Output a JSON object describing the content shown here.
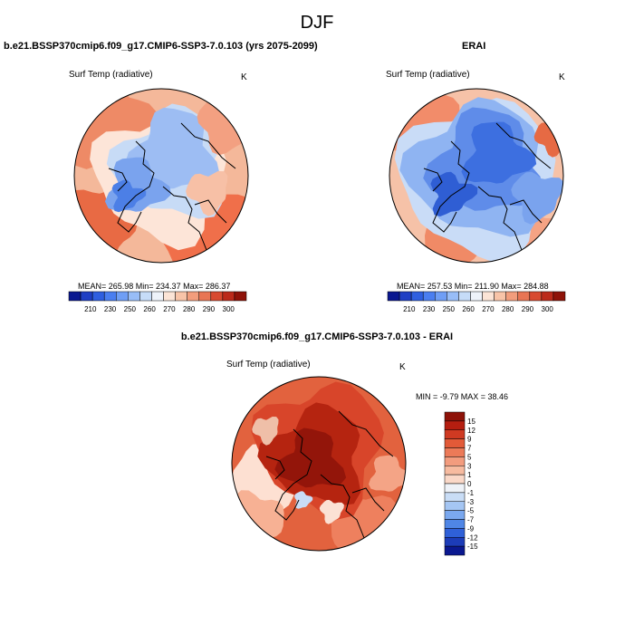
{
  "figure": {
    "title": "DJF"
  },
  "panels": [
    {
      "id": "model",
      "title": "b.e21.BSSP370cmip6.f09_g17.CMIP6-SSP3-7.0.103 (yrs 2075-2099)",
      "variable": "Surf Temp (radiative)",
      "units": "K",
      "stats": "MEAN= 265.98  Min= 234.37  Max= 286.37"
    },
    {
      "id": "obs",
      "title": "ERAI",
      "variable": "Surf Temp (radiative)",
      "units": "K",
      "stats": "MEAN= 257.53  Min= 211.90  Max= 284.88"
    },
    {
      "id": "diff",
      "title": "b.e21.BSSP370cmip6.f09_g17.CMIP6-SSP3-7.0.103 - ERAI",
      "variable": "Surf Temp (radiative)",
      "units": "K",
      "stats": "MIN =  -9.79 MAX =  38.46"
    }
  ],
  "chart_data": [
    {
      "type": "heatmap",
      "projection": "north polar stereographic",
      "title": "b.e21.BSSP370cmip6.f09_g17.CMIP6-SSP3-7.0.103 (yrs 2075-2099)",
      "variable": "Surf Temp (radiative)",
      "units": "K",
      "mean": 265.98,
      "min": 234.37,
      "max": 286.37,
      "colorbar": {
        "orientation": "horizontal",
        "ticks": [
          210,
          230,
          250,
          260,
          270,
          280,
          290,
          300
        ],
        "colors": [
          "#0a1890",
          "#1f3fc4",
          "#2f5fe0",
          "#4a7ef0",
          "#6f9ef5",
          "#98bdf7",
          "#c6dcf8",
          "#eef3fa",
          "#fbe4d6",
          "#f8c4a8",
          "#f29d7c",
          "#e87554",
          "#d84a30",
          "#bb2a1a",
          "#8e1208"
        ]
      }
    },
    {
      "type": "heatmap",
      "projection": "north polar stereographic",
      "title": "ERAI",
      "variable": "Surf Temp (radiative)",
      "units": "K",
      "mean": 257.53,
      "min": 211.9,
      "max": 284.88,
      "colorbar": {
        "orientation": "horizontal",
        "ticks": [
          210,
          230,
          250,
          260,
          270,
          280,
          290,
          300
        ],
        "colors": [
          "#0a1890",
          "#1f3fc4",
          "#2f5fe0",
          "#4a7ef0",
          "#6f9ef5",
          "#98bdf7",
          "#c6dcf8",
          "#eef3fa",
          "#fbe4d6",
          "#f8c4a8",
          "#f29d7c",
          "#e87554",
          "#d84a30",
          "#bb2a1a",
          "#8e1208"
        ]
      }
    },
    {
      "type": "heatmap",
      "projection": "north polar stereographic",
      "title": "b.e21.BSSP370cmip6.f09_g17.CMIP6-SSP3-7.0.103 - ERAI",
      "variable": "Surf Temp (radiative)",
      "units": "K",
      "min": -9.79,
      "max": 38.46,
      "colorbar": {
        "orientation": "vertical",
        "ticks": [
          15,
          12,
          9,
          7,
          5,
          3,
          1,
          0,
          -1,
          -3,
          -5,
          -7,
          -9,
          -12,
          -15
        ],
        "colors": [
          "#8e1208",
          "#b51e10",
          "#cf3a22",
          "#e25a38",
          "#ec7a58",
          "#f39c7e",
          "#f7bba0",
          "#fad8c8",
          "#eef2f8",
          "#c9ddf6",
          "#a5c6f3",
          "#7aa8ef",
          "#4f86e6",
          "#2f60d8",
          "#1c3cb8",
          "#0a1890"
        ]
      }
    }
  ]
}
